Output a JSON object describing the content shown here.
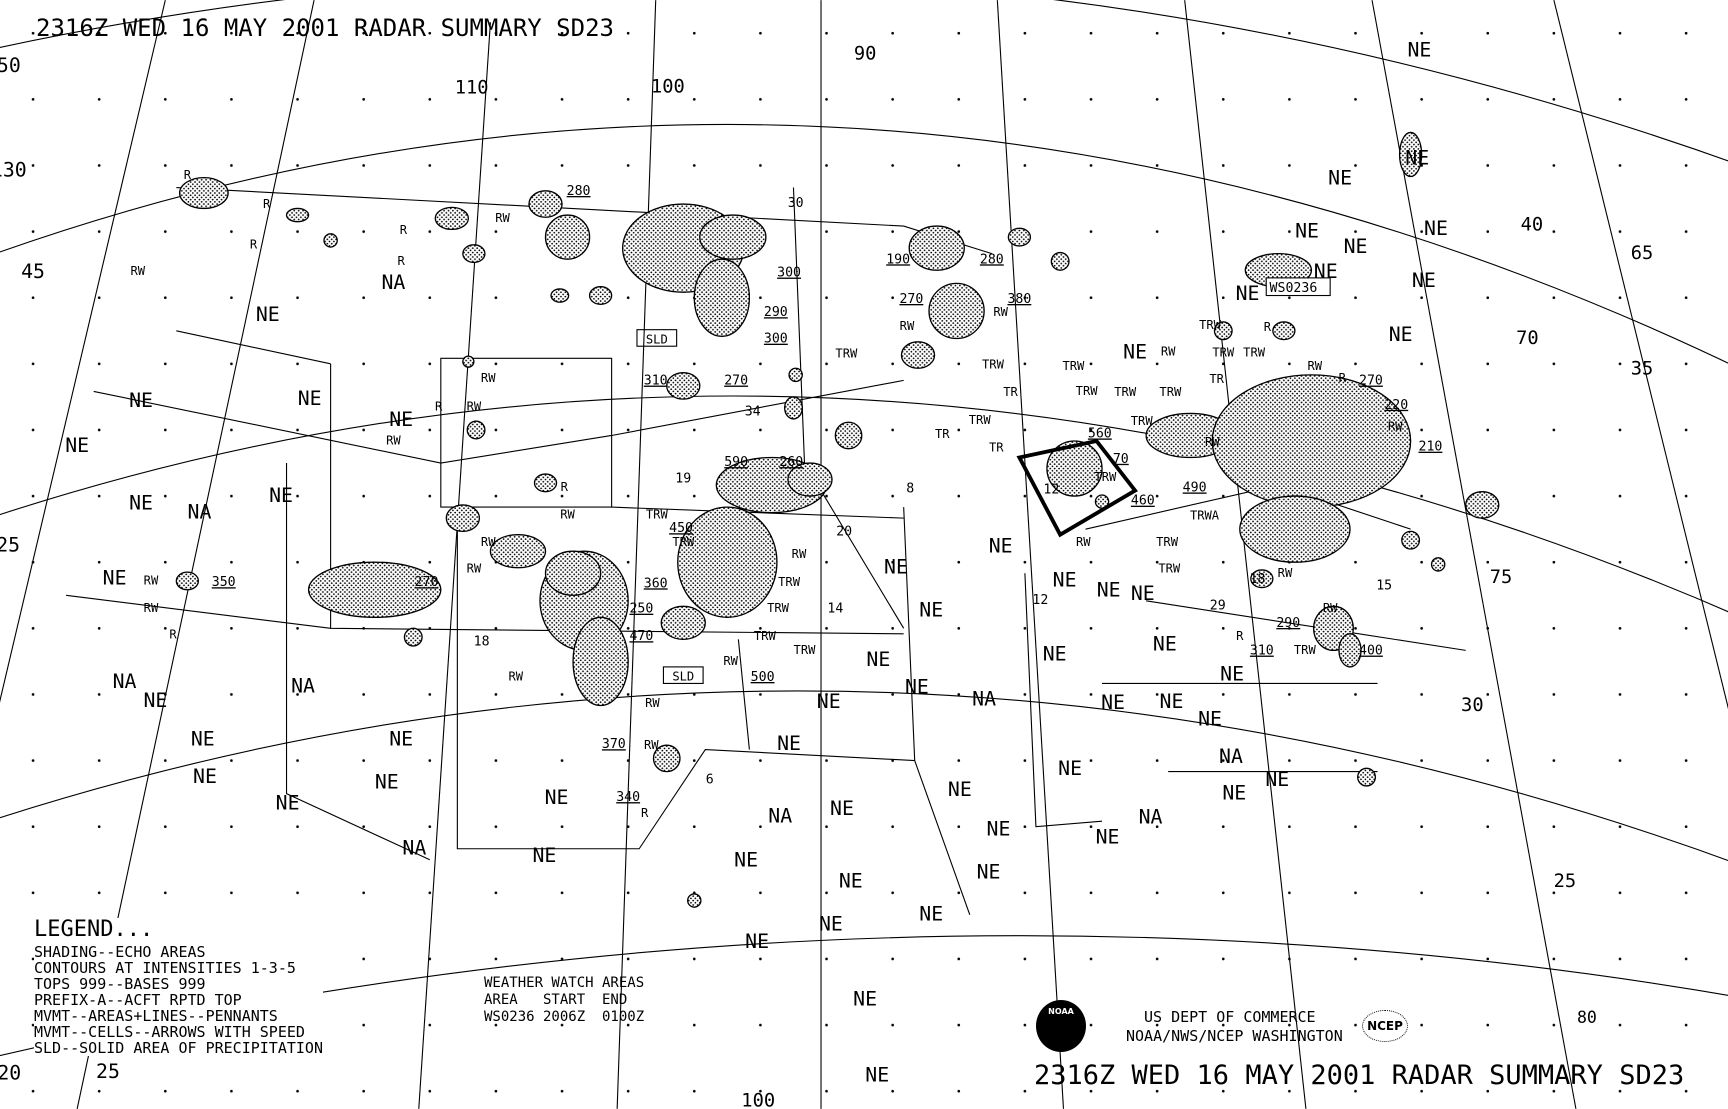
{
  "header": {
    "title": "2316Z WED 16 MAY 2001 RADAR SUMMARY SD23"
  },
  "footer": {
    "title": "2316Z WED 16 MAY 2001 RADAR SUMMARY SD23",
    "credit_line1": "US DEPT OF COMMERCE",
    "credit_line2": "NOAA/NWS/NCEP WASHINGTON",
    "noaa_logo": "NOAA",
    "ncep_logo": "NCEP"
  },
  "legend": {
    "heading": "LEGEND...",
    "lines": [
      "SHADING--ECHO AREAS",
      "CONTOURS AT INTENSITIES 1-3-5",
      "TOPS 999--BASES 999",
      "PREFIX-A--ACFT RPTD TOP",
      "MVMT--AREAS+LINES--PENNANTS",
      "MVMT--CELLS--ARROWS WITH SPEED",
      "SLD--SOLID AREA OF PRECIPITATION"
    ]
  },
  "watch_areas": {
    "heading": "WEATHER WATCH AREAS",
    "columns": "AREA   START  END",
    "rows": [
      "WS0236 2006Z  0100Z"
    ],
    "map_box_label": "WS0236"
  },
  "grid_labels": [
    "50",
    "45",
    "130",
    "125",
    "120",
    "25",
    "110",
    "100",
    "90",
    "100",
    "40",
    "65",
    "70",
    "35",
    "75",
    "30",
    "25",
    "80"
  ],
  "map_labels": {
    "coverage": [
      "NE",
      "NE",
      "NE",
      "NE",
      "NE",
      "NE",
      "NE",
      "NE",
      "NE",
      "NE",
      "NE",
      "NE",
      "NE",
      "NE",
      "NE",
      "NE",
      "NE",
      "NE",
      "NE",
      "NE",
      "NE",
      "NE",
      "NE",
      "NE",
      "NE",
      "NE",
      "NE",
      "NE",
      "NE",
      "NE",
      "NE",
      "NE",
      "NE",
      "NE",
      "NE",
      "NE",
      "NE",
      "NE",
      "NE",
      "NE",
      "NE",
      "NE",
      "NE",
      "NE",
      "NE",
      "NE",
      "NE",
      "NE",
      "NE",
      "NE",
      "NE",
      "NE",
      "NE",
      "NE",
      "NE",
      "NE",
      "NE",
      "NA",
      "NA",
      "NA",
      "NA",
      "NA",
      "NA",
      "NA",
      "NA",
      "NA",
      "NE"
    ],
    "tops": [
      "280",
      "300",
      "290",
      "300",
      "310",
      "270",
      "590",
      "260",
      "450",
      "360",
      "250",
      "470",
      "500",
      "350",
      "270",
      "370",
      "340",
      "190",
      "270",
      "280",
      "380",
      "560",
      "490",
      "460",
      "270",
      "220",
      "210",
      "290",
      "310",
      "400",
      "70"
    ],
    "speeds": [
      "30",
      "34",
      "19",
      "8",
      "20",
      "14",
      "18",
      "6",
      "12",
      "15",
      "29",
      "18",
      "12"
    ],
    "precip_types": [
      "R",
      "R",
      "R",
      "R",
      "R",
      "R",
      "R",
      "R",
      "R",
      "R",
      "R",
      "R",
      "RW",
      "RW",
      "RW",
      "RW",
      "RW",
      "RW",
      "RW",
      "RW",
      "RW",
      "RW",
      "RW",
      "RW",
      "RW",
      "RW",
      "RW",
      "RW",
      "RW",
      "RW",
      "RW",
      "RW",
      "RW",
      "RW",
      "RW",
      "RW",
      "TRW",
      "TRW",
      "TRW",
      "TRW",
      "TRW",
      "TRW",
      "TRW",
      "TRW",
      "TRW",
      "TRW",
      "TRW",
      "TRW",
      "TRW",
      "TRW",
      "TRW",
      "TRW",
      "TRW",
      "TRW",
      "TRW",
      "TRW",
      "TRW",
      "TR",
      "TR",
      "TR",
      "TR",
      "SLD",
      "SLD",
      "TRWA"
    ]
  },
  "colors": {
    "ink": "#000000",
    "background": "#ffffff"
  }
}
